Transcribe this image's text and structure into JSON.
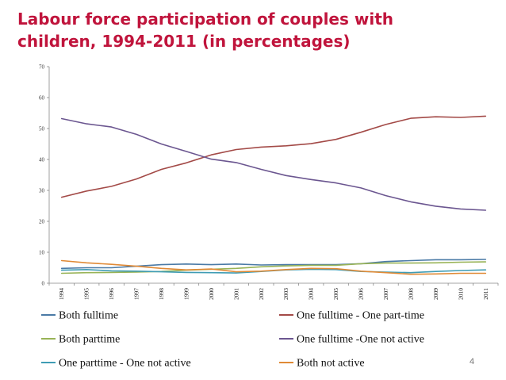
{
  "slide": {
    "title": "Labour force participation of couples with children, 1994-2011 (in percentages)",
    "page_number": "4"
  },
  "colors": {
    "title": "#c0143c",
    "both_fulltime": "#4a7aa6",
    "one_fulltime_one_parttime": "#a34a47",
    "both_parttime": "#98b356",
    "one_fulltime_one_not_active": "#6b5690",
    "one_parttime_one_not_active": "#3f9cb4",
    "both_not_active": "#e08a36"
  },
  "chart_data": {
    "type": "line",
    "title": "",
    "xlabel": "",
    "ylabel": "",
    "ylim": [
      0,
      70
    ],
    "yticks": [
      0,
      10,
      20,
      30,
      40,
      50,
      60,
      70
    ],
    "categories": [
      "1994",
      "1995",
      "1996",
      "1997",
      "1998",
      "1999",
      "2000",
      "2001",
      "2002",
      "2003",
      "2004",
      "2005",
      "2006",
      "2007",
      "2008",
      "2009",
      "2010",
      "2011"
    ],
    "legend_position": "bottom",
    "grid": false,
    "series": [
      {
        "name": "Both fulltime",
        "color": "#4a7aa6",
        "values": [
          4.8,
          5.0,
          5.0,
          5.5,
          6.0,
          6.2,
          6.0,
          6.2,
          5.9,
          6.0,
          6.0,
          6.0,
          6.3,
          7.0,
          7.3,
          7.6,
          7.6,
          7.7
        ]
      },
      {
        "name": "One fulltime - One part-time",
        "color": "#a34a47",
        "values": [
          27.8,
          29.8,
          31.3,
          33.7,
          36.8,
          38.9,
          41.5,
          43.2,
          44.0,
          44.4,
          45.1,
          46.5,
          48.8,
          51.3,
          53.3,
          53.8,
          53.6,
          54.0
        ]
      },
      {
        "name": "Both parttime",
        "color": "#98b356",
        "values": [
          3.2,
          3.4,
          3.5,
          3.6,
          3.8,
          4.2,
          4.5,
          4.8,
          5.3,
          5.6,
          5.8,
          5.8,
          6.3,
          6.5,
          6.5,
          6.6,
          6.8,
          6.9
        ]
      },
      {
        "name": "One fulltime -One not active",
        "color": "#6b5690",
        "values": [
          53.2,
          51.5,
          50.5,
          48.1,
          45.0,
          42.6,
          40.1,
          39.0,
          36.8,
          34.8,
          33.5,
          32.4,
          30.8,
          28.3,
          26.3,
          24.9,
          24.0,
          23.6
        ]
      },
      {
        "name": "One parttime - One not active",
        "color": "#3f9cb4",
        "values": [
          4.2,
          4.4,
          4.0,
          3.9,
          3.7,
          3.5,
          3.4,
          3.3,
          3.8,
          4.3,
          4.5,
          4.4,
          3.8,
          3.6,
          3.4,
          3.8,
          4.1,
          4.3
        ]
      },
      {
        "name": "Both not active",
        "color": "#e08a36",
        "values": [
          7.3,
          6.6,
          6.1,
          5.5,
          4.8,
          4.3,
          4.6,
          3.7,
          3.9,
          4.4,
          4.8,
          4.7,
          3.9,
          3.4,
          2.9,
          3.0,
          3.2,
          3.2
        ]
      }
    ]
  }
}
